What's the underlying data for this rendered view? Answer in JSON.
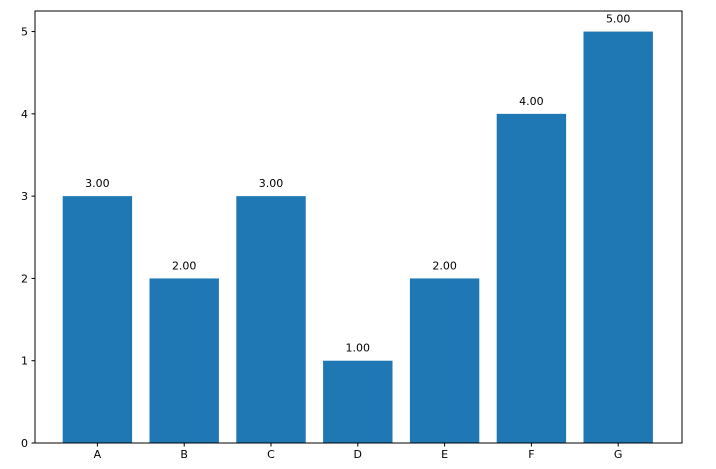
{
  "chart_data": {
    "type": "bar",
    "categories": [
      "A",
      "B",
      "C",
      "D",
      "E",
      "F",
      "G"
    ],
    "values": [
      3,
      2,
      3,
      1,
      2,
      4,
      5
    ],
    "data_labels": [
      "3.00",
      "2.00",
      "3.00",
      "1.00",
      "2.00",
      "4.00",
      "5.00"
    ],
    "y_ticks": [
      0,
      1,
      2,
      3,
      4,
      5
    ],
    "ylim": [
      0,
      5.25
    ],
    "title": "",
    "xlabel": "",
    "ylabel": "",
    "grid": false,
    "bar_color": "#1f77b4"
  }
}
